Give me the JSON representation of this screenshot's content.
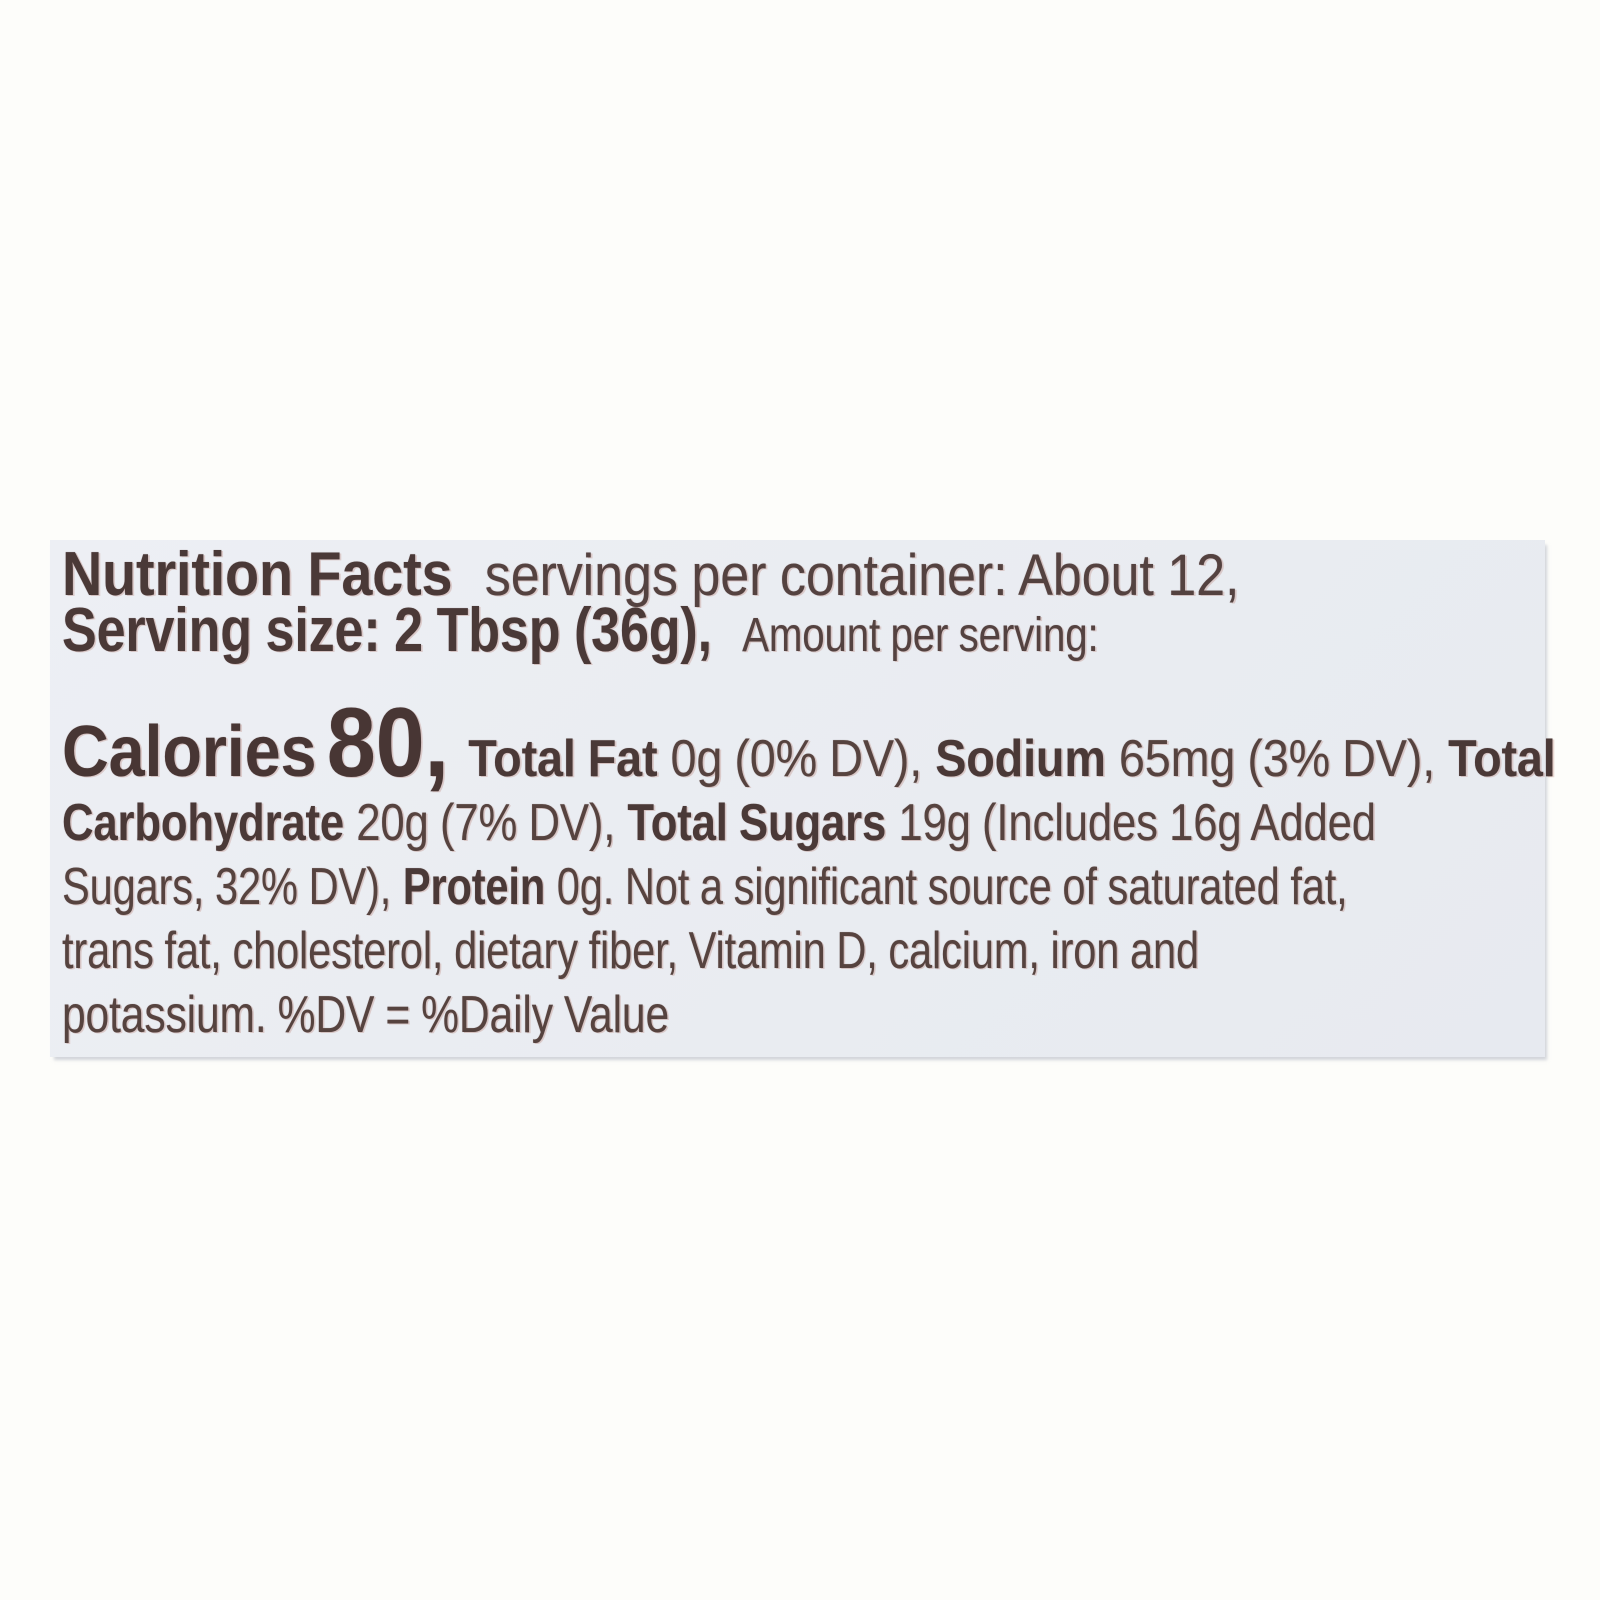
{
  "page": {
    "background_color": "#fdfdfa"
  },
  "label": {
    "background_color": "#eaedf2",
    "text_color_bold": "#4a3937",
    "text_color_regular": "#56433f",
    "lines": [
      {
        "segments": [
          {
            "text": "Nutrition Facts",
            "style": "title"
          },
          {
            "text": "servings per container: About 12,",
            "style": "header-lg"
          }
        ]
      },
      {
        "segments": [
          {
            "text": "Serving size: 2 Tbsp (36g),",
            "style": "title"
          },
          {
            "text": "Amount per serving:",
            "style": "header-sm"
          }
        ]
      },
      {
        "segments": [
          {
            "text": "Calories",
            "style": "calories-word"
          },
          {
            "text": "80,",
            "style": "calories-value"
          },
          {
            "text": "Total Fat",
            "style": "bold"
          },
          {
            "text": "0g (0% DV),",
            "style": "regular"
          },
          {
            "text": "Sodium",
            "style": "bold"
          },
          {
            "text": "65mg (3% DV),",
            "style": "regular"
          },
          {
            "text": "Total",
            "style": "bold"
          }
        ]
      },
      {
        "segments": [
          {
            "text": "Carbohydrate",
            "style": "bold"
          },
          {
            "text": "20g (7% DV),",
            "style": "regular"
          },
          {
            "text": "Total Sugars",
            "style": "bold"
          },
          {
            "text": "19g (Includes 16g Added",
            "style": "regular"
          }
        ]
      },
      {
        "segments": [
          {
            "text": "Sugars, 32% DV),",
            "style": "regular"
          },
          {
            "text": "Protein",
            "style": "bold"
          },
          {
            "text": "0g. Not a significant source of saturated fat,",
            "style": "regular"
          }
        ]
      },
      {
        "segments": [
          {
            "text": "trans fat, cholesterol, dietary fiber, Vitamin D, calcium, iron and",
            "style": "regular"
          }
        ]
      },
      {
        "segments": [
          {
            "text": "potassium. %DV = %Daily Value",
            "style": "regular"
          }
        ]
      }
    ]
  },
  "nutrition_facts": {
    "servings_per_container": "About 12",
    "serving_size": "2 Tbsp (36g)",
    "calories": "80",
    "nutrients": [
      {
        "name": "Total Fat",
        "amount": "0g",
        "daily_value": "0% DV"
      },
      {
        "name": "Sodium",
        "amount": "65mg",
        "daily_value": "3% DV"
      },
      {
        "name": "Total Carbohydrate",
        "amount": "20g",
        "daily_value": "7% DV"
      },
      {
        "name": "Total Sugars",
        "amount": "19g",
        "includes": "Includes 16g Added Sugars, 32% DV"
      },
      {
        "name": "Protein",
        "amount": "0g"
      }
    ],
    "not_significant_source_of": "saturated fat, trans fat, cholesterol, dietary fiber, Vitamin D, calcium, iron and potassium",
    "footnote": "%DV = %Daily Value"
  }
}
